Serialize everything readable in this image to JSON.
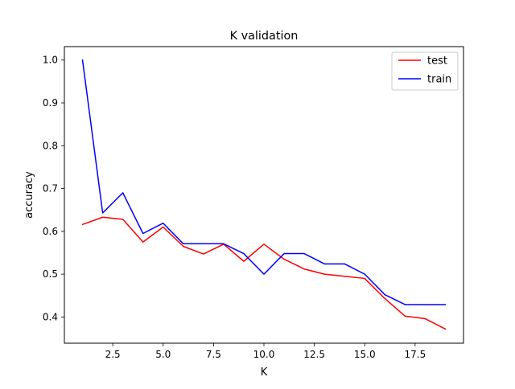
{
  "chart_data": {
    "type": "line",
    "title": "K validation",
    "xlabel": "K",
    "ylabel": "accuracy",
    "xlim": [
      0.1,
      19.9
    ],
    "ylim": [
      0.3388,
      1.0314
    ],
    "xticks": [
      2.5,
      5.0,
      7.5,
      10.0,
      12.5,
      15.0,
      17.5
    ],
    "xtick_labels": [
      "2.5",
      "5.0",
      "7.5",
      "10.0",
      "12.5",
      "15.0",
      "17.5"
    ],
    "yticks": [
      0.4,
      0.5,
      0.6,
      0.7,
      0.8,
      0.9,
      1.0
    ],
    "ytick_labels": [
      "0.4",
      "0.5",
      "0.6",
      "0.7",
      "0.8",
      "0.9",
      "1.0"
    ],
    "grid": false,
    "legend_position": "upper right",
    "x": [
      1,
      2,
      3,
      4,
      5,
      6,
      7,
      8,
      9,
      10,
      11,
      12,
      13,
      14,
      15,
      16,
      17,
      18,
      19
    ],
    "series": [
      {
        "name": "test",
        "color": "#ff0000",
        "values": [
          0.616,
          0.633,
          0.628,
          0.575,
          0.61,
          0.565,
          0.547,
          0.57,
          0.53,
          0.57,
          0.535,
          0.512,
          0.5,
          0.495,
          0.49,
          0.443,
          0.402,
          0.396,
          0.372
        ]
      },
      {
        "name": "train",
        "color": "#0000ff",
        "values": [
          1.0,
          0.643,
          0.69,
          0.595,
          0.619,
          0.571,
          0.571,
          0.571,
          0.548,
          0.5,
          0.548,
          0.548,
          0.524,
          0.524,
          0.5,
          0.452,
          0.429,
          0.429,
          0.429
        ]
      }
    ]
  }
}
